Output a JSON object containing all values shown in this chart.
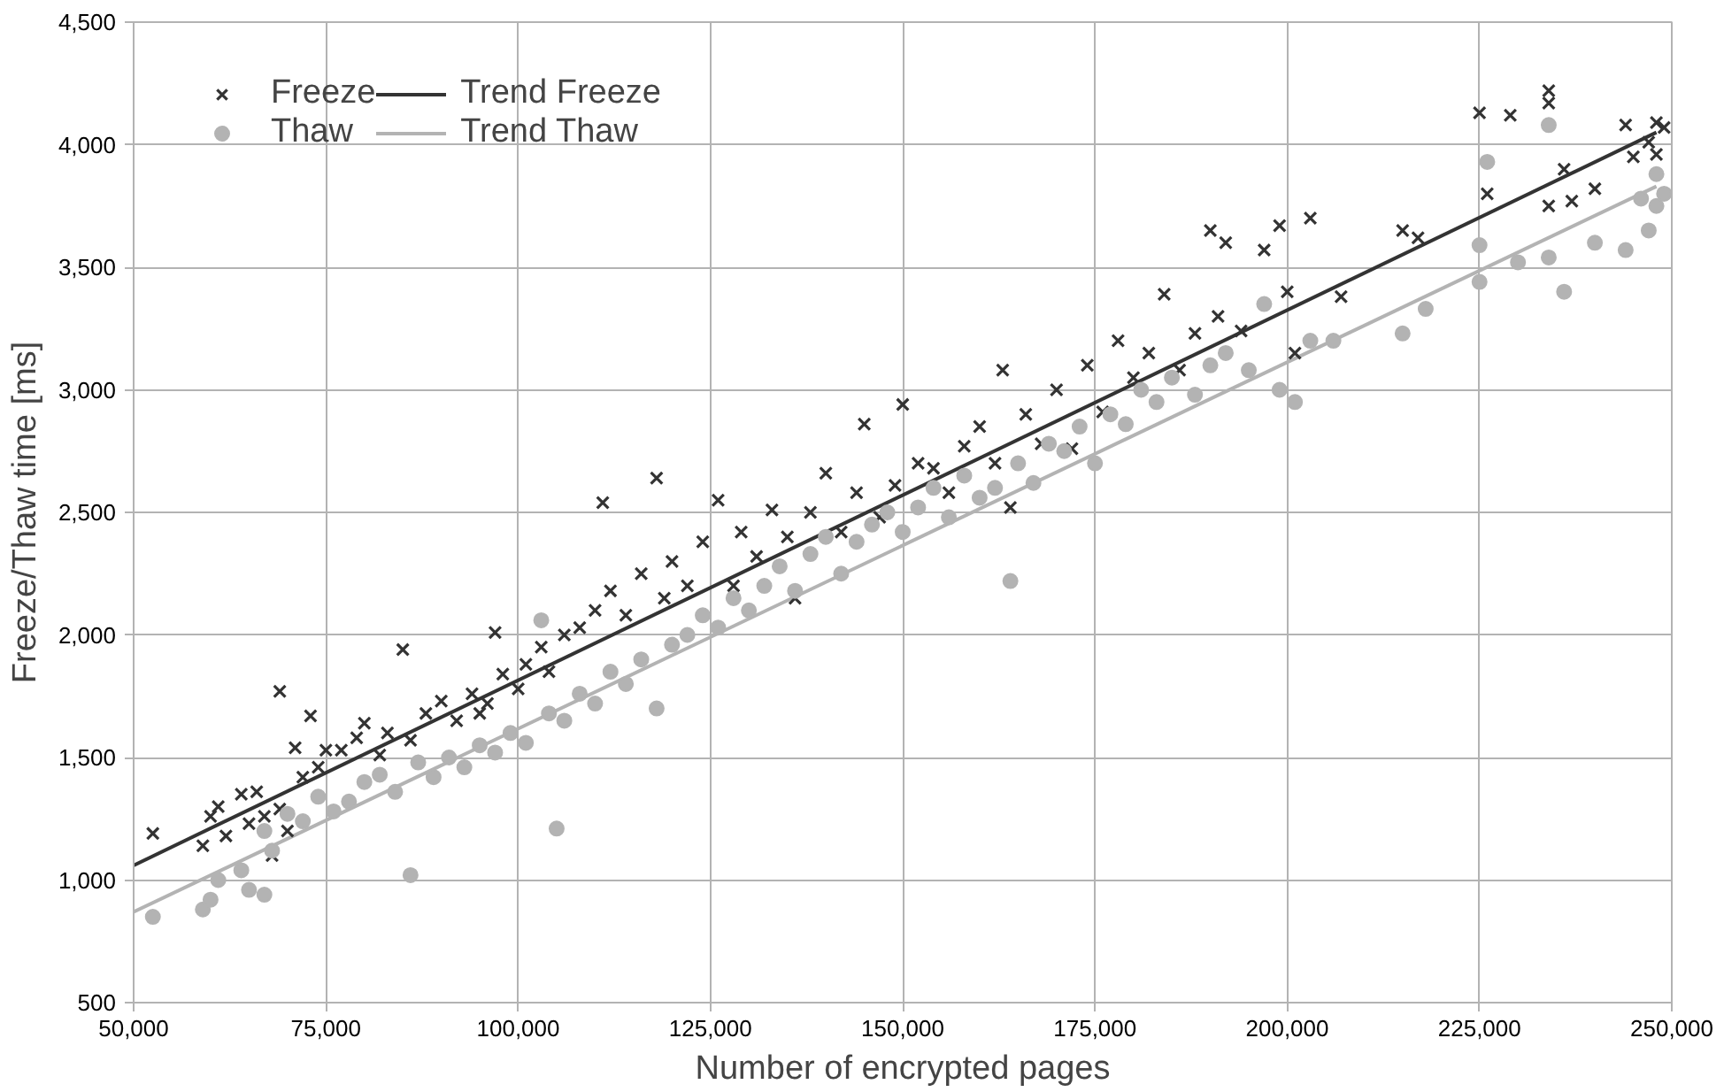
{
  "chart_data": {
    "type": "scatter",
    "xlabel": "Number of encrypted pages",
    "ylabel": "Freeze/Thaw time [ms]",
    "xlim": [
      50000,
      250000
    ],
    "xticks": [
      {
        "value": 50000,
        "label": "50,000"
      },
      {
        "value": 75000,
        "label": "75,000"
      },
      {
        "value": 100000,
        "label": "100,000"
      },
      {
        "value": 125000,
        "label": "125,000"
      },
      {
        "value": 150000,
        "label": "150,000"
      },
      {
        "value": 175000,
        "label": "175,000"
      },
      {
        "value": 200000,
        "label": "200,000"
      },
      {
        "value": 225000,
        "label": "225,000"
      },
      {
        "value": 250000,
        "label": "250,000"
      }
    ],
    "ylim": [
      500,
      4500
    ],
    "yticks": [
      500,
      {
        "value": 1000,
        "label": "1,000"
      },
      {
        "value": 1500,
        "label": "1,500"
      },
      {
        "value": 2000,
        "label": "2,000"
      },
      {
        "value": 2500,
        "label": "2,500"
      },
      {
        "value": 3000,
        "label": "3,000"
      },
      {
        "value": 3500,
        "label": "3,500"
      },
      {
        "value": 4000,
        "label": "4,000"
      },
      {
        "value": 4500,
        "label": "4,500"
      }
    ],
    "grid": true,
    "legend": "top left",
    "series": [
      {
        "name": "Freeze",
        "marker": "cross",
        "color": "#333333",
        "x": [
          52500,
          59000,
          60000,
          61000,
          62000,
          64000,
          65000,
          66000,
          67000,
          68000,
          69000,
          69000,
          70000,
          71000,
          72000,
          73000,
          74000,
          75000,
          77000,
          79000,
          80000,
          82000,
          83000,
          85000,
          86000,
          88000,
          90000,
          92000,
          94000,
          95000,
          96000,
          97000,
          98000,
          100000,
          101000,
          103000,
          104000,
          106000,
          108000,
          110000,
          111000,
          112000,
          114000,
          116000,
          118000,
          119000,
          120000,
          122000,
          124000,
          126000,
          128000,
          129000,
          131000,
          133000,
          135000,
          136000,
          138000,
          140000,
          142000,
          144000,
          145000,
          147000,
          149000,
          150000,
          152000,
          154000,
          156000,
          158000,
          160000,
          162000,
          163000,
          164000,
          166000,
          168000,
          170000,
          172000,
          174000,
          176000,
          178000,
          180000,
          182000,
          184000,
          186000,
          188000,
          190000,
          191000,
          192000,
          194000,
          197000,
          199000,
          200000,
          201000,
          203000,
          207000,
          215000,
          217000,
          225000,
          226000,
          229000,
          234000,
          234000,
          234000,
          236000,
          237000,
          240000,
          244000,
          245000,
          247000,
          248000,
          248000,
          249000
        ],
        "values": [
          1190,
          1140,
          1260,
          1300,
          1180,
          1350,
          1230,
          1360,
          1260,
          1100,
          1290,
          1770,
          1200,
          1540,
          1420,
          1670,
          1460,
          1530,
          1530,
          1580,
          1640,
          1510,
          1600,
          1940,
          1570,
          1680,
          1730,
          1650,
          1760,
          1680,
          1720,
          2010,
          1840,
          1780,
          1880,
          1950,
          1850,
          2000,
          2030,
          2100,
          2540,
          2180,
          2080,
          2250,
          2640,
          2150,
          2300,
          2200,
          2380,
          2550,
          2200,
          2420,
          2320,
          2510,
          2400,
          2150,
          2500,
          2660,
          2420,
          2580,
          2860,
          2480,
          2610,
          2940,
          2700,
          2680,
          2580,
          2770,
          2850,
          2700,
          3080,
          2520,
          2900,
          2780,
          3000,
          2760,
          3100,
          2910,
          3200,
          3050,
          3150,
          3390,
          3080,
          3230,
          3650,
          3300,
          3600,
          3240,
          3570,
          3670,
          3400,
          3150,
          3700,
          3380,
          3650,
          3620,
          4130,
          3800,
          4120,
          4220,
          4170,
          3750,
          3900,
          3770,
          3820,
          4080,
          3950,
          4010,
          4090,
          3960,
          4070
        ]
      },
      {
        "name": "Thaw",
        "marker": "circle",
        "color": "#b3b3b3",
        "x": [
          52500,
          59000,
          60000,
          61000,
          64000,
          65000,
          67000,
          67000,
          68000,
          70000,
          72000,
          74000,
          76000,
          78000,
          80000,
          82000,
          84000,
          86000,
          87000,
          89000,
          91000,
          93000,
          95000,
          97000,
          99000,
          101000,
          103000,
          104000,
          105000,
          106000,
          108000,
          110000,
          112000,
          114000,
          116000,
          118000,
          120000,
          122000,
          124000,
          126000,
          128000,
          130000,
          132000,
          134000,
          136000,
          138000,
          140000,
          142000,
          144000,
          146000,
          148000,
          150000,
          152000,
          154000,
          156000,
          158000,
          160000,
          162000,
          164000,
          165000,
          167000,
          169000,
          171000,
          173000,
          175000,
          177000,
          179000,
          181000,
          183000,
          185000,
          188000,
          190000,
          192000,
          195000,
          197000,
          199000,
          201000,
          203000,
          206000,
          215000,
          218000,
          225000,
          225000,
          226000,
          230000,
          234000,
          234000,
          236000,
          240000,
          244000,
          246000,
          247000,
          248000,
          248000,
          249000
        ],
        "values": [
          850,
          880,
          920,
          1000,
          1040,
          960,
          1200,
          940,
          1120,
          1270,
          1240,
          1340,
          1280,
          1320,
          1400,
          1430,
          1360,
          1020,
          1480,
          1420,
          1500,
          1460,
          1550,
          1520,
          1600,
          1560,
          2060,
          1680,
          1210,
          1650,
          1760,
          1720,
          1850,
          1800,
          1900,
          1700,
          1960,
          2000,
          2080,
          2030,
          2150,
          2100,
          2200,
          2280,
          2180,
          2330,
          2400,
          2250,
          2380,
          2450,
          2500,
          2420,
          2520,
          2600,
          2480,
          2650,
          2560,
          2600,
          2220,
          2700,
          2620,
          2780,
          2750,
          2850,
          2700,
          2900,
          2860,
          3000,
          2950,
          3050,
          2980,
          3100,
          3150,
          3080,
          3350,
          3000,
          2950,
          3200,
          3200,
          3230,
          3330,
          3440,
          3590,
          3930,
          3520,
          4080,
          3540,
          3400,
          3600,
          3570,
          3780,
          3650,
          3750,
          3880,
          3800
        ]
      },
      {
        "name": "Trend Freeze",
        "type": "line",
        "color": "#333333",
        "x": [
          50000,
          248000
        ],
        "values": [
          1060,
          4050
        ]
      },
      {
        "name": "Trend Thaw",
        "type": "line",
        "color": "#b3b3b3",
        "x": [
          50000,
          248000
        ],
        "values": [
          870,
          3830
        ]
      }
    ]
  }
}
